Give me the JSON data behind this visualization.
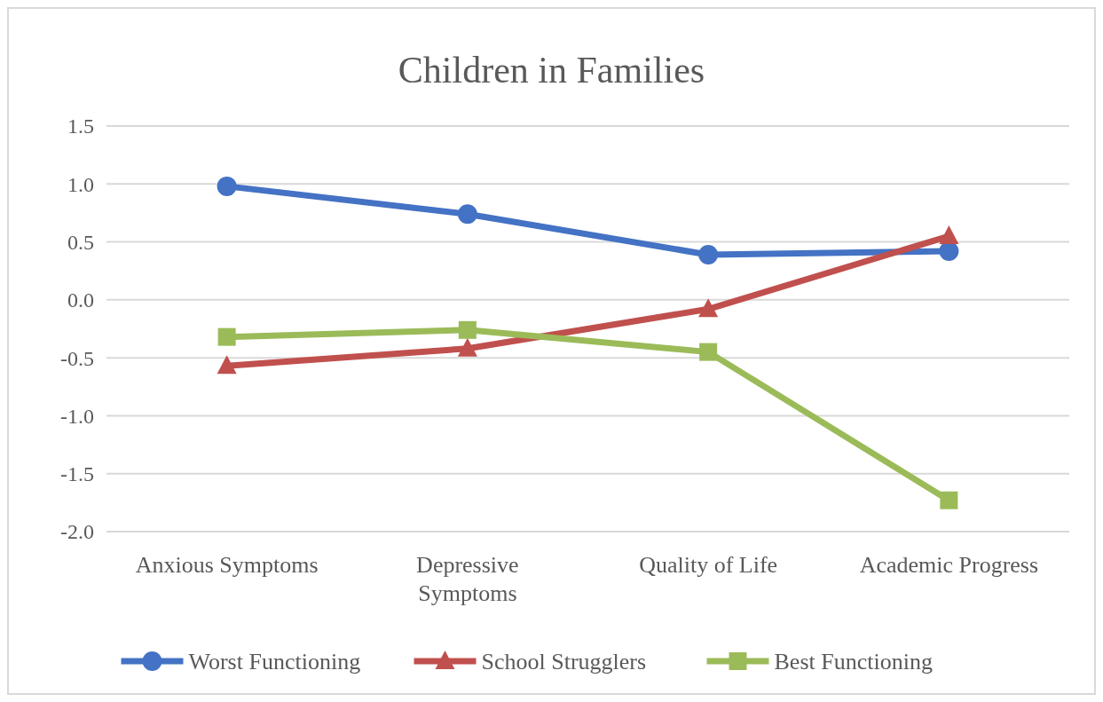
{
  "chart_data": {
    "type": "line",
    "title": "Children in Families",
    "categories": [
      "Anxious Symptoms",
      "Depressive Symptoms",
      "Quality of Life",
      "Academic Progress"
    ],
    "series": [
      {
        "name": "Worst Functioning",
        "color": "#4472c4",
        "marker": "circle",
        "values": [
          0.98,
          0.74,
          0.39,
          0.42
        ]
      },
      {
        "name": "School Strugglers",
        "color": "#c0504d",
        "marker": "triangle",
        "values": [
          -0.57,
          -0.42,
          -0.08,
          0.55
        ]
      },
      {
        "name": "Best Functioning",
        "color": "#9bbb59",
        "marker": "square",
        "values": [
          -0.32,
          -0.26,
          -0.45,
          -1.73
        ]
      }
    ],
    "ylim": [
      -2.0,
      1.5
    ],
    "yticks": [
      {
        "value": -2,
        "label": "-2.0"
      },
      {
        "value": -1.5,
        "label": "-1.5"
      },
      {
        "value": -1,
        "label": "-1.0"
      },
      {
        "value": -0.5,
        "label": "-0.5"
      },
      {
        "value": 0,
        "label": "0.0"
      },
      {
        "value": 0.5,
        "label": "0.5"
      },
      {
        "value": 1,
        "label": "1.0"
      },
      {
        "value": 1.5,
        "label": "1.5"
      }
    ],
    "grid": "y",
    "legend": "bottom",
    "line_style": "solid"
  }
}
